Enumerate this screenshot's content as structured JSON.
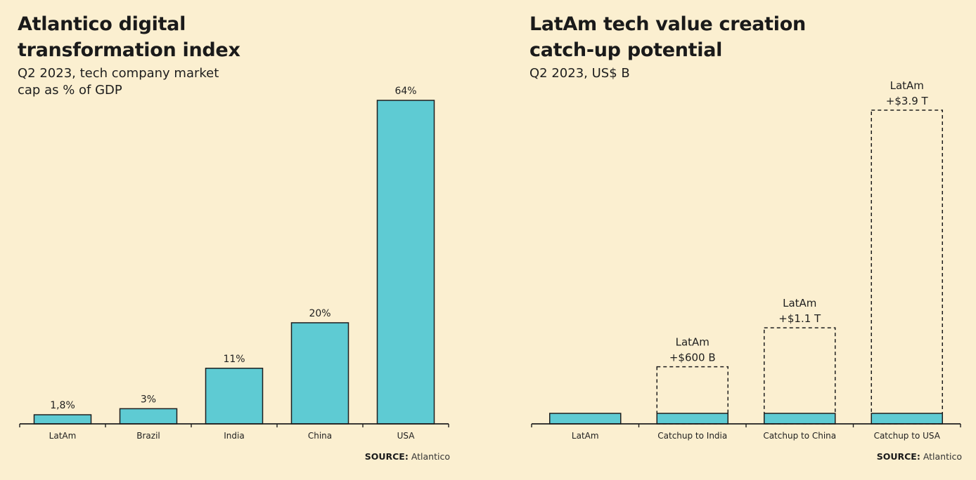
{
  "colors": {
    "background": "#fbefd0",
    "bar": "#5ecbd3",
    "outline": "#1e1e1e"
  },
  "left": {
    "title": "Atlantico digital\ntransformation index",
    "subtitle": "Q2 2023, tech company market\ncap as % of GDP",
    "source_label": "SOURCE:",
    "source_value": "Atlantico"
  },
  "right": {
    "title": "LatAm tech value creation\ncatch-up potential",
    "subtitle": "Q2 2023, US$ B",
    "source_label": "SOURCE:",
    "source_value": "Atlantico"
  },
  "chart_data": [
    {
      "type": "bar",
      "title": "Atlantico digital transformation index",
      "subtitle": "Q2 2023, tech company market cap as % of GDP",
      "categories": [
        "LatAm",
        "Brazil",
        "India",
        "China",
        "USA"
      ],
      "values": [
        1.8,
        3,
        11,
        20,
        64
      ],
      "data_labels": [
        "1,8%",
        "3%",
        "11%",
        "20%",
        "64%"
      ],
      "unit": "%",
      "ylim": [
        0,
        64
      ],
      "grid": false,
      "legend": "none"
    },
    {
      "type": "bar",
      "title": "LatAm tech value creation catch-up potential",
      "subtitle": "Q2 2023, US$ B",
      "categories": [
        "LatAm",
        "Catchup to India",
        "Catchup to China",
        "Catchup to USA"
      ],
      "series": [
        {
          "values": [
            135,
            135,
            135,
            135
          ]
        },
        {
          "values": [
            0,
            600,
            1100,
            3900
          ]
        }
      ],
      "data_labels": [
        "",
        "LatAm\n+$600 B",
        "LatAm\n+$1.1 T",
        "LatAm\n+$3.9 T"
      ],
      "stacked": true,
      "ylim": [
        0,
        4000
      ],
      "grid": false,
      "legend": "none"
    }
  ]
}
